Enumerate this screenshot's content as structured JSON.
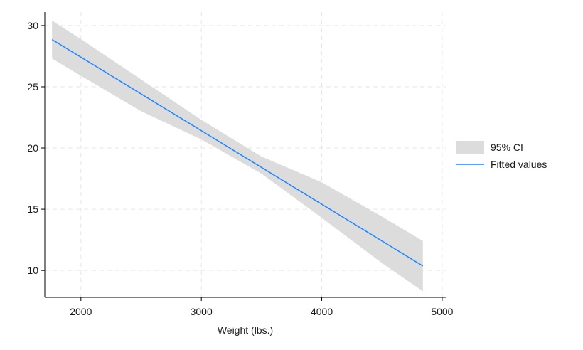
{
  "chart_data": {
    "type": "line",
    "title": "",
    "xlabel": "Weight (lbs.)",
    "ylabel": "",
    "xlim": [
      1700,
      5030
    ],
    "ylim": [
      7.8,
      31.1
    ],
    "xticks": [
      2000,
      3000,
      4000,
      5000
    ],
    "yticks": [
      10,
      15,
      20,
      25,
      30
    ],
    "grid": true,
    "legend_position": "right",
    "series": [
      {
        "name": "95% CI",
        "kind": "band",
        "color": "#dcdcdc",
        "x": [
          1760,
          2000,
          2500,
          3000,
          3500,
          4000,
          4500,
          4840
        ],
        "lower": [
          27.3,
          25.9,
          23.0,
          20.7,
          17.9,
          14.3,
          10.6,
          8.3
        ],
        "upper": [
          30.4,
          28.9,
          25.6,
          22.3,
          19.3,
          17.2,
          14.4,
          12.4
        ]
      },
      {
        "name": "Fitted values",
        "kind": "line",
        "color": "#1a85ff",
        "x": [
          1760,
          4840
        ],
        "y": [
          28.86,
          10.36
        ]
      }
    ]
  }
}
